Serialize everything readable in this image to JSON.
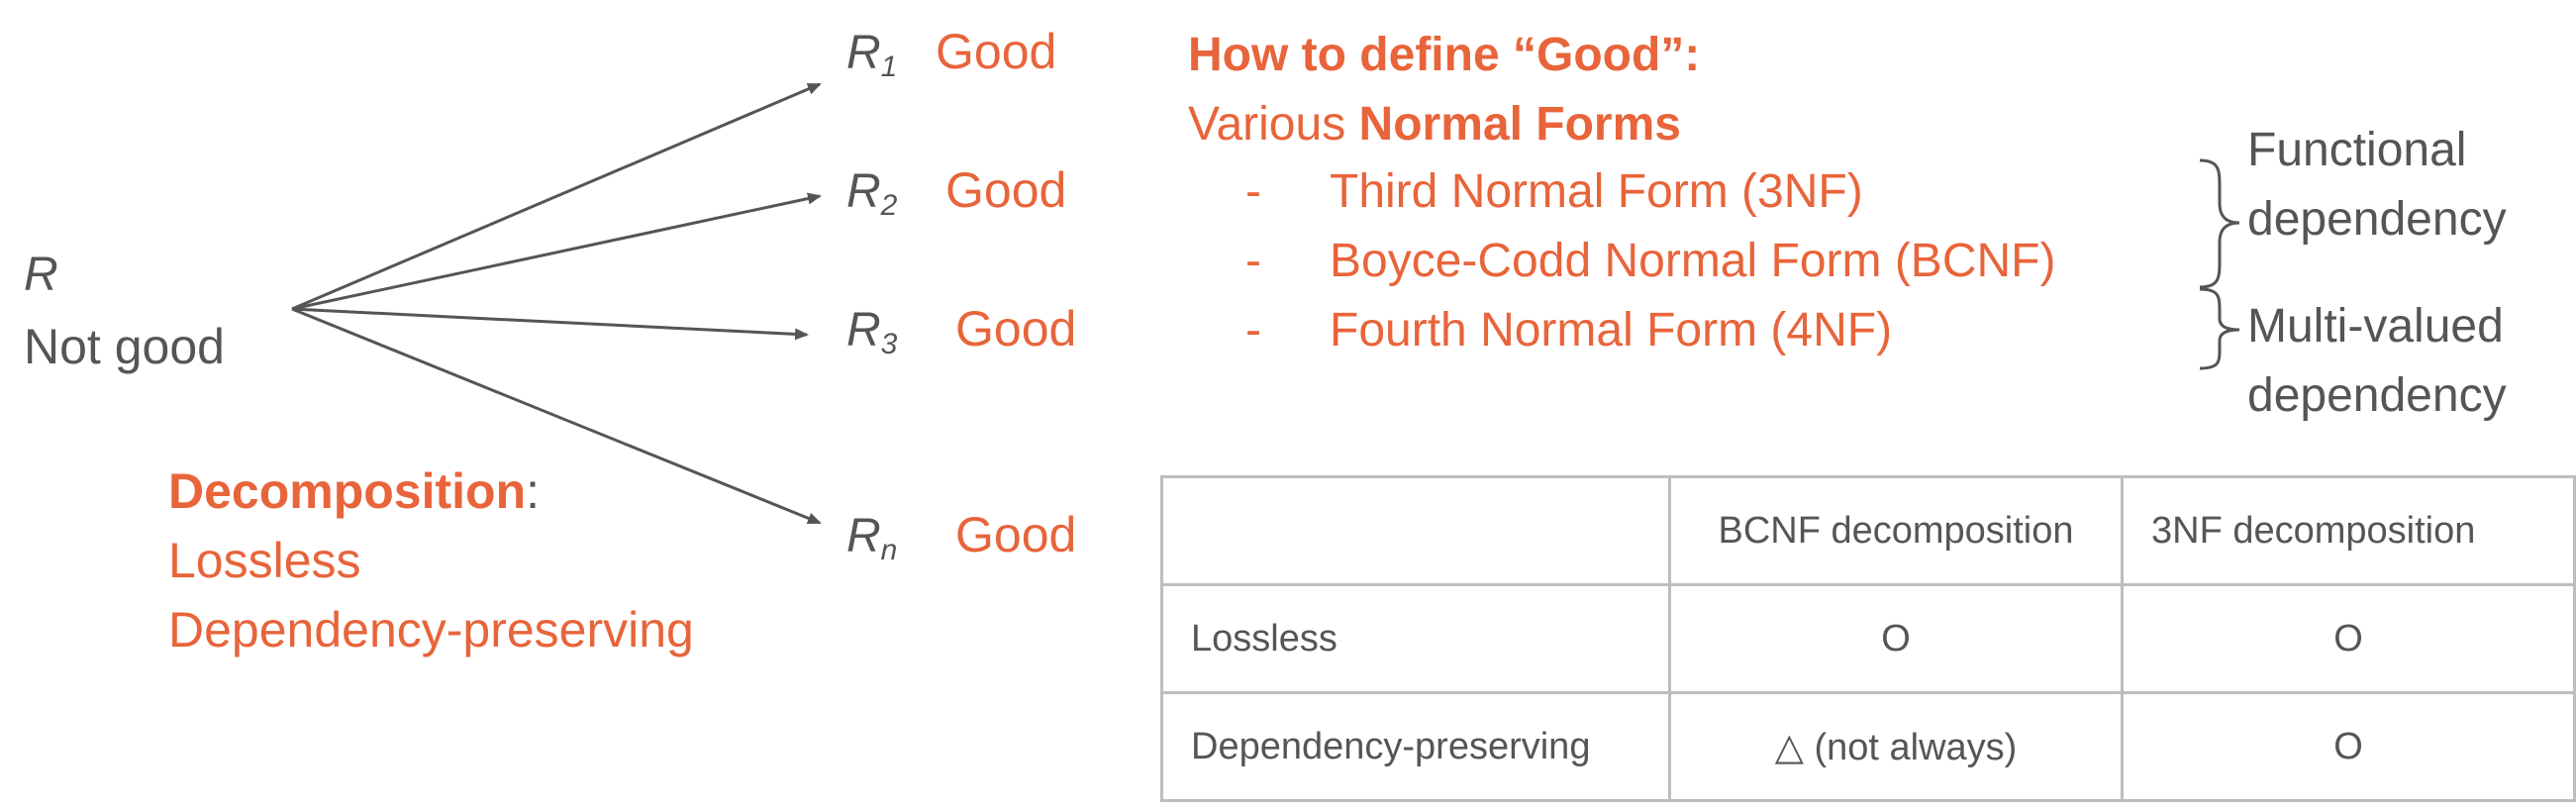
{
  "source": {
    "name": "R",
    "status": "Not good"
  },
  "decomposition": {
    "title": "Decomposition",
    "colon": ":",
    "properties": [
      "Lossless",
      "Dependency-preserving"
    ]
  },
  "results": [
    {
      "name": "R",
      "sub": "1",
      "status": "Good"
    },
    {
      "name": "R",
      "sub": "2",
      "status": "Good"
    },
    {
      "name": "R",
      "sub": "3",
      "status": "Good"
    },
    {
      "name": "R",
      "sub": "n",
      "status": "Good"
    }
  ],
  "definition": {
    "heading": "How to define “Good”:",
    "intro_plain": "Various ",
    "intro_bold": "Normal Forms",
    "forms": [
      {
        "dash": "-",
        "label": "Third Normal Form (3NF)"
      },
      {
        "dash": "-",
        "label": "Boyce-Codd Normal Form (BCNF)"
      },
      {
        "dash": "-",
        "label": "Fourth Normal Form (4NF)"
      }
    ]
  },
  "dependency_groups": [
    {
      "line1": "Functional",
      "line2": "dependency"
    },
    {
      "line1": "Multi-valued",
      "line2": "dependency"
    }
  ],
  "table": {
    "headers": [
      "",
      "BCNF decomposition",
      "3NF decomposition"
    ],
    "rows": [
      [
        "Lossless",
        "O",
        "O"
      ],
      [
        "Dependency-preserving",
        "△ (not always)",
        "O"
      ]
    ]
  },
  "colors": {
    "accent": "#e8643a",
    "text": "#555555",
    "border": "#bdbdbd"
  }
}
